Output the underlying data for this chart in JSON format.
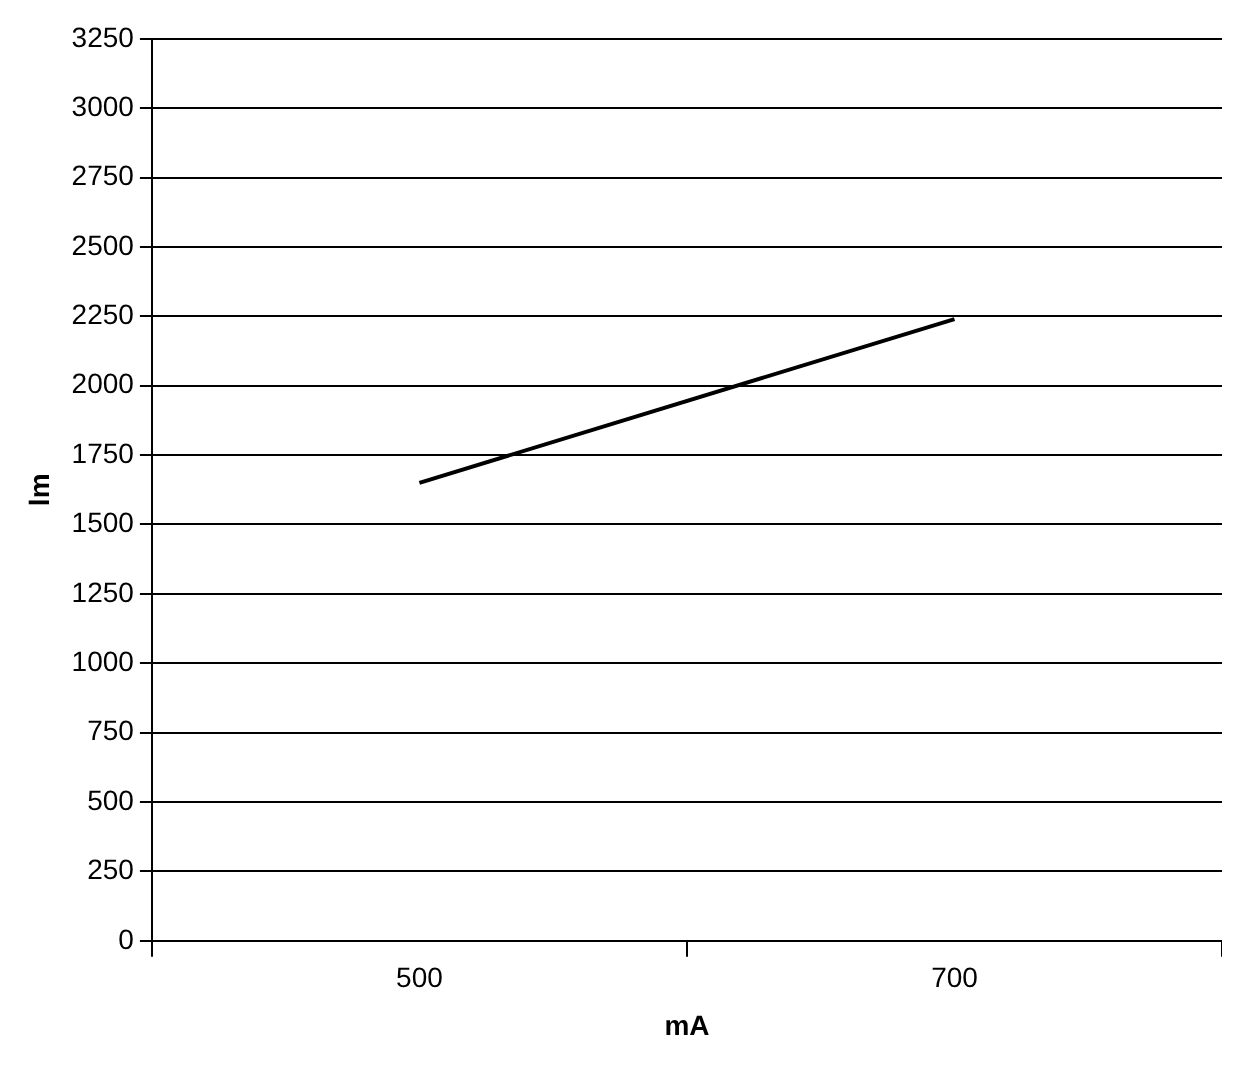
{
  "chart_data": {
    "type": "line",
    "xlabel": "mA",
    "ylabel": "lm",
    "categories": [
      "500",
      "700"
    ],
    "series": [
      {
        "color": "#000000",
        "values": [
          1650,
          2240
        ]
      }
    ],
    "ylim": [
      0,
      3250
    ],
    "yticks": [
      0,
      250,
      500,
      750,
      1000,
      1250,
      1500,
      1750,
      2000,
      2250,
      2500,
      2750,
      3000,
      3250
    ],
    "grid": "y",
    "legend": false,
    "marker": "none",
    "line_style": "solid"
  }
}
